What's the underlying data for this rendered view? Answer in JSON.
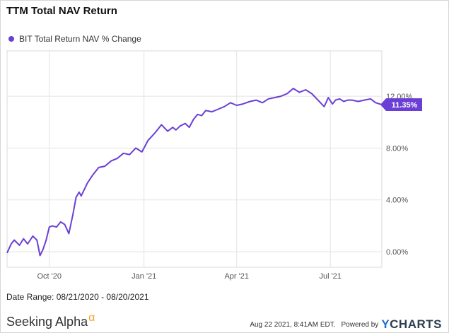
{
  "header": {
    "title": "TTM Total NAV Return"
  },
  "colors": {
    "series": "#6b3fd6",
    "grid": "#e3e3e3",
    "axis": "#555555"
  },
  "chart_data": {
    "type": "line",
    "title": "TTM Total NAV Return",
    "series": [
      {
        "name": "BIT Total Return NAV % Change",
        "x": [
          "2020-08-21",
          "2020-08-25",
          "2020-08-28",
          "2020-09-02",
          "2020-09-06",
          "2020-09-10",
          "2020-09-15",
          "2020-09-19",
          "2020-09-22",
          "2020-09-25",
          "2020-09-28",
          "2020-10-01",
          "2020-10-04",
          "2020-10-08",
          "2020-10-12",
          "2020-10-16",
          "2020-10-20",
          "2020-10-24",
          "2020-10-27",
          "2020-10-30",
          "2020-11-01",
          "2020-11-04",
          "2020-11-07",
          "2020-11-12",
          "2020-11-18",
          "2020-11-24",
          "2020-11-30",
          "2020-12-06",
          "2020-12-12",
          "2020-12-18",
          "2020-12-24",
          "2020-12-30",
          "2021-01-05",
          "2021-01-12",
          "2021-01-18",
          "2021-01-24",
          "2021-01-29",
          "2021-02-01",
          "2021-02-05",
          "2021-02-10",
          "2021-02-14",
          "2021-02-18",
          "2021-02-22",
          "2021-02-26",
          "2021-03-02",
          "2021-03-08",
          "2021-03-14",
          "2021-03-20",
          "2021-03-26",
          "2021-04-01",
          "2021-04-07",
          "2021-04-14",
          "2021-04-20",
          "2021-04-26",
          "2021-05-02",
          "2021-05-08",
          "2021-05-14",
          "2021-05-20",
          "2021-05-26",
          "2021-06-01",
          "2021-06-07",
          "2021-06-13",
          "2021-06-19",
          "2021-06-25",
          "2021-06-29",
          "2021-07-03",
          "2021-07-06",
          "2021-07-10",
          "2021-07-14",
          "2021-07-18",
          "2021-07-22",
          "2021-07-28",
          "2021-08-03",
          "2021-08-09",
          "2021-08-14",
          "2021-08-20"
        ],
        "values": [
          -0.1,
          0.6,
          0.9,
          0.5,
          1.0,
          0.6,
          1.2,
          0.9,
          -0.3,
          0.2,
          0.9,
          1.9,
          2.0,
          1.9,
          2.3,
          2.1,
          1.4,
          2.9,
          4.2,
          4.6,
          4.3,
          4.8,
          5.3,
          5.9,
          6.5,
          6.6,
          7.0,
          7.2,
          7.6,
          7.5,
          8.0,
          7.7,
          8.6,
          9.2,
          9.8,
          9.3,
          9.6,
          9.4,
          9.7,
          9.9,
          9.6,
          10.2,
          10.6,
          10.5,
          10.9,
          10.8,
          11.0,
          11.2,
          11.5,
          11.3,
          11.4,
          11.6,
          11.7,
          11.5,
          11.8,
          11.9,
          12.0,
          12.2,
          12.6,
          12.3,
          12.5,
          12.2,
          11.7,
          11.2,
          11.9,
          11.4,
          11.7,
          11.8,
          11.6,
          11.7,
          11.7,
          11.6,
          11.7,
          11.8,
          11.5,
          11.35
        ]
      }
    ],
    "legend": "top-left",
    "x_ticks": [
      {
        "date": "2020-10-01",
        "label": "Oct '20"
      },
      {
        "date": "2021-01-01",
        "label": "Jan '21"
      },
      {
        "date": "2021-04-01",
        "label": "Apr '21"
      },
      {
        "date": "2021-07-01",
        "label": "Jul '21"
      }
    ],
    "y_ticks": [
      {
        "value": 0,
        "label": "0.00%"
      },
      {
        "value": 4,
        "label": "4.00%"
      },
      {
        "value": 8,
        "label": "8.00%"
      },
      {
        "value": 12,
        "label": "12.00%"
      }
    ],
    "xlim": [
      "2020-08-21",
      "2021-08-20"
    ],
    "ylim": [
      -1.2,
      15.5
    ],
    "grid": true,
    "last_value_label": "11.35%"
  },
  "footer": {
    "date_range": "Date Range: 08/21/2020 - 08/20/2021",
    "brand": "Seeking Alpha",
    "brand_mark": "α",
    "timestamp": "Aug 22 2021, 8:41AM EDT.",
    "powered_by": "Powered by",
    "ycharts_y": "Y",
    "ycharts_rest": "CHARTS"
  }
}
